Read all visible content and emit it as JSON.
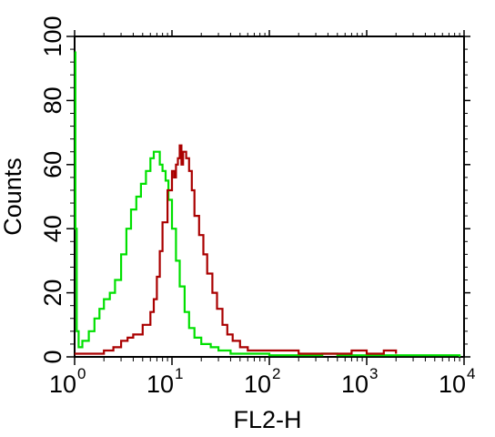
{
  "chart_data": {
    "type": "line",
    "title": "",
    "xlabel": "FL2-H",
    "ylabel": "Counts",
    "x_scale": "log",
    "xlim": [
      1,
      10000
    ],
    "ylim": [
      0,
      100
    ],
    "x_ticks": [
      {
        "value": 1,
        "base": "10",
        "exp": "0"
      },
      {
        "value": 10,
        "base": "10",
        "exp": "1"
      },
      {
        "value": 100,
        "base": "10",
        "exp": "2"
      },
      {
        "value": 1000,
        "base": "10",
        "exp": "3"
      },
      {
        "value": 10000,
        "base": "10",
        "exp": "4"
      }
    ],
    "y_ticks": [
      "0",
      "20",
      "40",
      "60",
      "80",
      "100"
    ],
    "grid": false,
    "legend": "none",
    "series": [
      {
        "color": "#00e000",
        "points": [
          [
            1.0,
            95
          ],
          [
            1.02,
            40
          ],
          [
            1.05,
            8
          ],
          [
            1.1,
            3
          ],
          [
            1.2,
            5
          ],
          [
            1.4,
            8
          ],
          [
            1.6,
            12
          ],
          [
            1.8,
            15
          ],
          [
            2.0,
            18
          ],
          [
            2.3,
            20
          ],
          [
            2.6,
            24
          ],
          [
            3.0,
            32
          ],
          [
            3.4,
            40
          ],
          [
            3.8,
            46
          ],
          [
            4.3,
            50
          ],
          [
            4.8,
            54
          ],
          [
            5.4,
            58
          ],
          [
            6.0,
            62
          ],
          [
            6.5,
            64
          ],
          [
            7.0,
            64
          ],
          [
            7.5,
            60
          ],
          [
            8.0,
            58
          ],
          [
            8.6,
            55
          ],
          [
            9.2,
            49
          ],
          [
            10.0,
            40
          ],
          [
            11.0,
            30
          ],
          [
            12.0,
            22
          ],
          [
            13.5,
            14
          ],
          [
            15.0,
            9
          ],
          [
            17.0,
            6
          ],
          [
            20.0,
            4
          ],
          [
            25.0,
            3
          ],
          [
            30.0,
            2
          ],
          [
            40.0,
            1
          ],
          [
            60.0,
            1
          ],
          [
            100,
            0.5
          ],
          [
            200,
            0.5
          ],
          [
            350,
            1
          ],
          [
            500,
            0.5
          ],
          [
            1000,
            0.5
          ],
          [
            2000,
            0.5
          ],
          [
            9000,
            0
          ]
        ]
      },
      {
        "color": "#aa0000",
        "points": [
          [
            1.0,
            1
          ],
          [
            1.5,
            1
          ],
          [
            2.0,
            2
          ],
          [
            2.5,
            3
          ],
          [
            3.0,
            5
          ],
          [
            3.5,
            6
          ],
          [
            4.0,
            7
          ],
          [
            5.0,
            10
          ],
          [
            6.0,
            14
          ],
          [
            6.5,
            18
          ],
          [
            7.0,
            25
          ],
          [
            7.5,
            33
          ],
          [
            8.0,
            42
          ],
          [
            9.0,
            52
          ],
          [
            10.0,
            58
          ],
          [
            10.5,
            56
          ],
          [
            11.0,
            60
          ],
          [
            11.5,
            62
          ],
          [
            12.0,
            66
          ],
          [
            12.5,
            60
          ],
          [
            13.0,
            64
          ],
          [
            14.0,
            62
          ],
          [
            15.0,
            58
          ],
          [
            16.0,
            52
          ],
          [
            17.0,
            44
          ],
          [
            19.0,
            38
          ],
          [
            21.0,
            32
          ],
          [
            23.0,
            26
          ],
          [
            26.0,
            20
          ],
          [
            29.0,
            15
          ],
          [
            33.0,
            10
          ],
          [
            37.0,
            7
          ],
          [
            42.0,
            5
          ],
          [
            50.0,
            3
          ],
          [
            60.0,
            2
          ],
          [
            80.0,
            2
          ],
          [
            100,
            2
          ],
          [
            200,
            1
          ],
          [
            500,
            1
          ],
          [
            700,
            2
          ],
          [
            1000,
            1
          ],
          [
            1500,
            2
          ],
          [
            2000,
            1
          ]
        ]
      }
    ]
  }
}
